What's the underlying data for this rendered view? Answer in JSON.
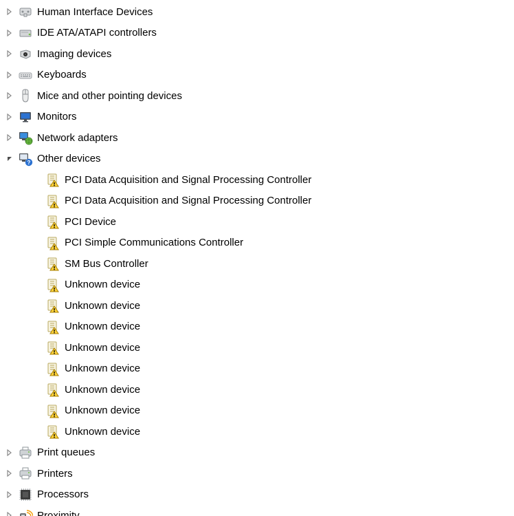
{
  "tree": {
    "icon_colors": {
      "arrow_collapsed_stroke": "#8a8a8a",
      "arrow_expanded_fill": "#4d4d4d",
      "warn_page_fill": "#f7f3e0",
      "warn_page_stroke": "#b9a95f",
      "warn_triangle_fill": "#ffd43b",
      "warn_triangle_stroke": "#a87f00",
      "printer_body": "#cfd3d6",
      "printer_dark": "#8e9499",
      "printer_tray": "#ffffff",
      "monitor_screen": "#2d73d2",
      "monitor_bezel": "#4d5258",
      "keyboard_body": "#e5e6e7",
      "keyboard_stroke": "#9a9fa3",
      "mouse_body": "#eceded",
      "mouse_stroke": "#8c9094",
      "network_screen": "#3a8dde",
      "network_globe": "#6fbf44",
      "cpu_body": "#3d3d3d",
      "cpu_pin": "#aeb2b5",
      "proximity_body": "#6b6f72",
      "proximity_waves": "#f59e0b",
      "hid_body": "#d9dbdd",
      "hid_stroke": "#8a8f93",
      "ide_body": "#d4d6d8",
      "ide_led": "#6fbf44",
      "camera_body": "#d6d8da",
      "camera_lens": "#2b2b2b",
      "q_fill": "#2d73d2",
      "q_text": "#ffffff"
    },
    "categories": [
      {
        "expanded": false,
        "icon": "hid",
        "label": "Human Interface Devices"
      },
      {
        "expanded": false,
        "icon": "ide",
        "label": "IDE ATA/ATAPI controllers"
      },
      {
        "expanded": false,
        "icon": "camera",
        "label": "Imaging devices"
      },
      {
        "expanded": false,
        "icon": "keyboard",
        "label": "Keyboards"
      },
      {
        "expanded": false,
        "icon": "mouse",
        "label": "Mice and other pointing devices"
      },
      {
        "expanded": false,
        "icon": "monitor",
        "label": "Monitors"
      },
      {
        "expanded": false,
        "icon": "network",
        "label": "Network adapters"
      },
      {
        "expanded": true,
        "icon": "otherq",
        "label": "Other devices",
        "children": [
          {
            "icon": "warn",
            "label": "PCI Data Acquisition and Signal Processing Controller"
          },
          {
            "icon": "warn",
            "label": "PCI Data Acquisition and Signal Processing Controller"
          },
          {
            "icon": "warn",
            "label": "PCI Device"
          },
          {
            "icon": "warn",
            "label": "PCI Simple Communications Controller"
          },
          {
            "icon": "warn",
            "label": "SM Bus Controller"
          },
          {
            "icon": "warn",
            "label": "Unknown device"
          },
          {
            "icon": "warn",
            "label": "Unknown device"
          },
          {
            "icon": "warn",
            "label": "Unknown device"
          },
          {
            "icon": "warn",
            "label": "Unknown device"
          },
          {
            "icon": "warn",
            "label": "Unknown device"
          },
          {
            "icon": "warn",
            "label": "Unknown device"
          },
          {
            "icon": "warn",
            "label": "Unknown device"
          },
          {
            "icon": "warn",
            "label": "Unknown device"
          }
        ]
      },
      {
        "expanded": false,
        "icon": "printer",
        "label": "Print queues"
      },
      {
        "expanded": false,
        "icon": "printer",
        "label": "Printers"
      },
      {
        "expanded": false,
        "icon": "cpu",
        "label": "Processors"
      },
      {
        "expanded": false,
        "icon": "proximity",
        "label": "Proximity"
      }
    ]
  }
}
